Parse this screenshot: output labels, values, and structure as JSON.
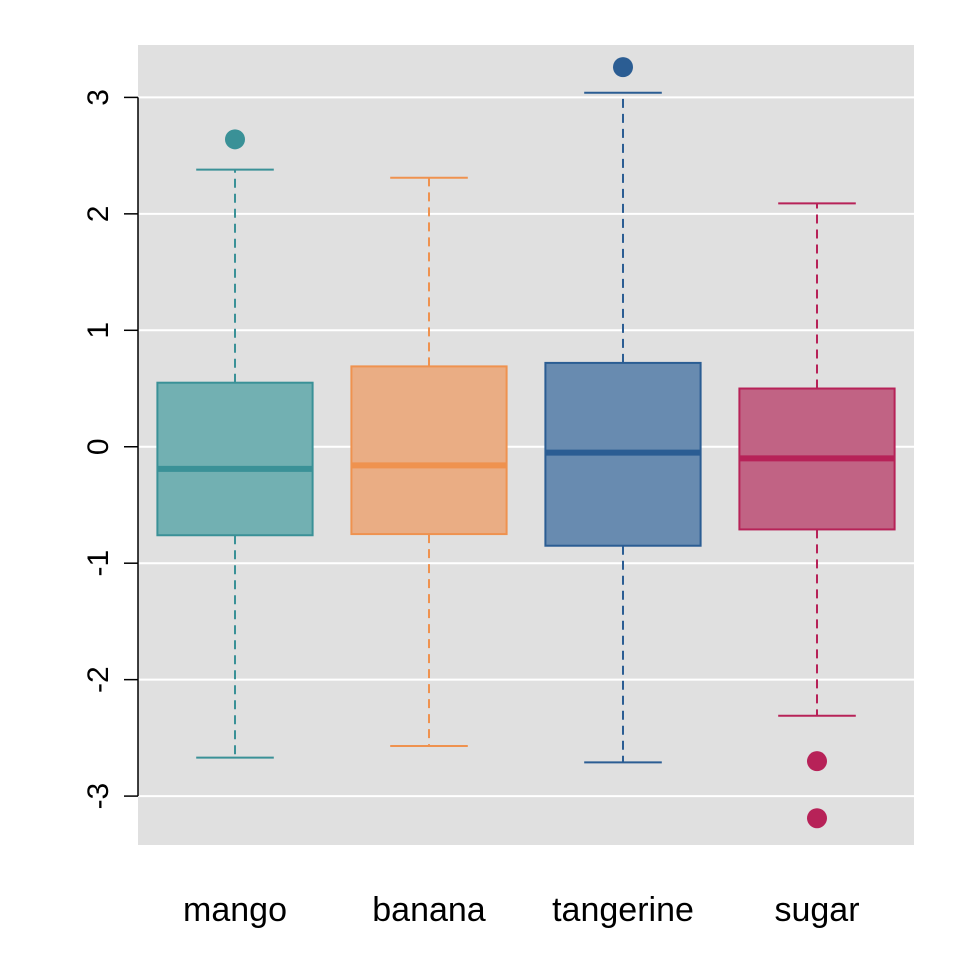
{
  "chart_data": {
    "type": "box",
    "title": "",
    "xlabel": "",
    "ylabel": "",
    "ylim": [
      -3.42,
      3.45
    ],
    "yticks": [
      -3,
      -2,
      -1,
      0,
      1,
      2,
      3
    ],
    "ytick_labels": [
      "-3",
      "-2",
      "-1",
      "0",
      "1",
      "2",
      "3"
    ],
    "grid": true,
    "legend": "none",
    "background": "#e0e0e0",
    "categories": [
      "mango",
      "banana",
      "tangerine",
      "sugar"
    ],
    "series": [
      {
        "category": "mango",
        "color": "#3a9197",
        "fill": "#72b0b2",
        "whisker_low": -2.67,
        "q1": -0.76,
        "median": -0.19,
        "q3": 0.55,
        "whisker_high": 2.38,
        "outliers": [
          2.64
        ]
      },
      {
        "category": "banana",
        "color": "#ef924f",
        "fill": "#eaad84",
        "whisker_low": -2.57,
        "q1": -0.75,
        "median": -0.16,
        "q3": 0.69,
        "whisker_high": 2.31,
        "outliers": []
      },
      {
        "category": "tangerine",
        "color": "#2b5d93",
        "fill": "#688bb0",
        "whisker_low": -2.71,
        "q1": -0.85,
        "median": -0.05,
        "q3": 0.72,
        "whisker_high": 3.04,
        "outliers": [
          3.26
        ]
      },
      {
        "category": "sugar",
        "color": "#b72258",
        "fill": "#c16384",
        "whisker_low": -2.31,
        "q1": -0.71,
        "median": -0.1,
        "q3": 0.5,
        "whisker_high": 2.09,
        "outliers": [
          -2.7,
          -3.19
        ]
      }
    ]
  }
}
